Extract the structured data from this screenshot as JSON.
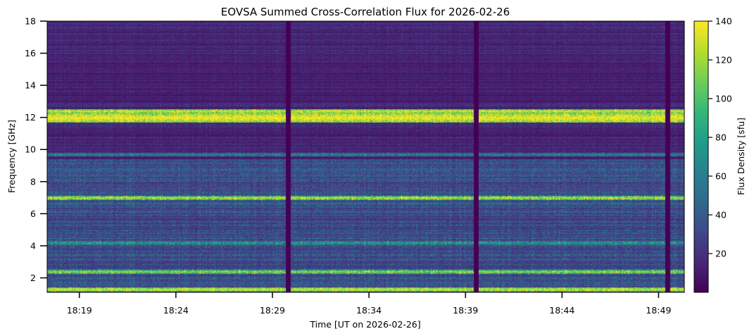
{
  "chart_data": {
    "type": "heatmap",
    "title": "EOVSA Summed Cross-Correlation Flux for 2026-02-26",
    "xlabel": "Time [UT on 2026-02-26]",
    "ylabel": "Frequency [GHz]",
    "colorbar_label": "Flux Density [sfu]",
    "colormap": "viridis",
    "x_range": [
      "18:17:20",
      "18:50:20"
    ],
    "x_ticks": [
      "18:19",
      "18:24",
      "18:29",
      "18:34",
      "18:39",
      "18:44",
      "18:49"
    ],
    "x_tick_minutes": [
      19,
      24,
      29,
      34,
      39,
      44,
      49
    ],
    "y_range": [
      1.1,
      18.0
    ],
    "y_ticks": [
      2,
      4,
      6,
      8,
      10,
      12,
      14,
      16,
      18
    ],
    "color_range": [
      0,
      140
    ],
    "colorbar_ticks": [
      20,
      40,
      60,
      80,
      100,
      120,
      140
    ],
    "data_gaps": [
      {
        "start": "18:29:40",
        "end": "18:29:55"
      },
      {
        "start": "18:39:25",
        "end": "18:39:40"
      },
      {
        "start": "18:49:20",
        "end": "18:49:35"
      }
    ],
    "bright_bands_ghz": [
      {
        "freq": 12.0,
        "flux": 140
      },
      {
        "freq": 12.4,
        "flux": 130
      },
      {
        "freq": 7.0,
        "flux": 120
      },
      {
        "freq": 4.2,
        "flux": 75
      },
      {
        "freq": 2.4,
        "flux": 110
      },
      {
        "freq": 1.3,
        "flux": 130
      },
      {
        "freq": 9.7,
        "flux": 60
      }
    ]
  },
  "colors": {
    "viridis": [
      "#440154",
      "#482777",
      "#3e4989",
      "#31688e",
      "#26828e",
      "#1f9e89",
      "#35b779",
      "#6ece58",
      "#b5de2b",
      "#fde725"
    ]
  }
}
